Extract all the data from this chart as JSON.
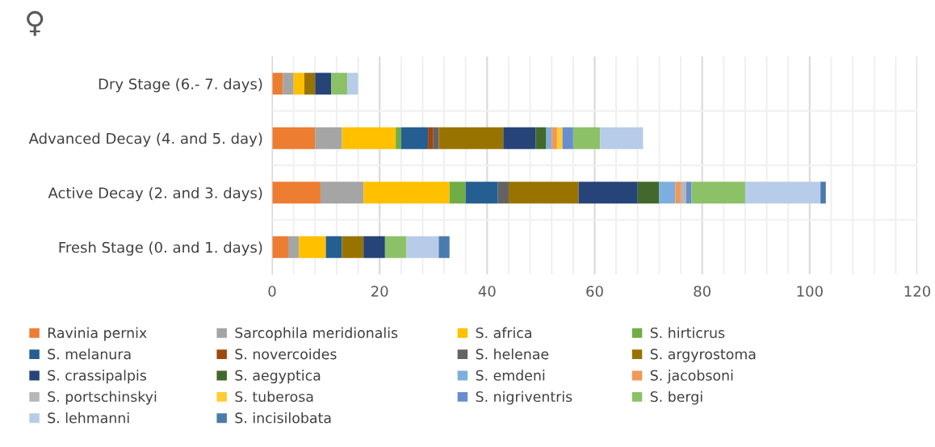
{
  "chart_data": {
    "type": "bar",
    "orientation": "horizontal",
    "stacked": true,
    "title": "♀",
    "categories": [
      "Dry Stage (6.- 7. days)",
      "Advanced Decay (4. and 5. day)",
      "Active Decay (2. and 3. days)",
      "Fresh Stage (0. and 1. days)"
    ],
    "series": [
      {
        "name": "Ravinia pernix",
        "color": "#ed7d31",
        "values": [
          2,
          8,
          9,
          3
        ]
      },
      {
        "name": "Sarcophila meridionalis",
        "color": "#a5a5a5",
        "values": [
          2,
          5,
          8,
          2
        ]
      },
      {
        "name": "S. africa",
        "color": "#ffc000",
        "values": [
          2,
          10,
          16,
          5
        ]
      },
      {
        "name": "S. hirticrus",
        "color": "#70ad47",
        "values": [
          0,
          1,
          3,
          0
        ]
      },
      {
        "name": "S. melanura",
        "color": "#255e91",
        "values": [
          0,
          5,
          6,
          3
        ]
      },
      {
        "name": "S. novercoides",
        "color": "#9e480e",
        "values": [
          0,
          1,
          0,
          0
        ]
      },
      {
        "name": "S. helenae",
        "color": "#636363",
        "values": [
          0,
          1,
          2,
          0
        ]
      },
      {
        "name": "S. argyrostoma",
        "color": "#997300",
        "values": [
          2,
          12,
          13,
          4
        ]
      },
      {
        "name": "S. crassipalpis",
        "color": "#264478",
        "values": [
          3,
          6,
          11,
          4
        ]
      },
      {
        "name": "S. aegyptica",
        "color": "#43682b",
        "values": [
          0,
          2,
          4,
          0
        ]
      },
      {
        "name": "S. emdeni",
        "color": "#7cafdd",
        "values": [
          0,
          1,
          3,
          0
        ]
      },
      {
        "name": "S. jacobsoni",
        "color": "#f1975a",
        "values": [
          0,
          1,
          1,
          0
        ]
      },
      {
        "name": "S. portschinskyi",
        "color": "#b7b7b7",
        "values": [
          0,
          0,
          1,
          0
        ]
      },
      {
        "name": "S. tuberosa",
        "color": "#ffcd33",
        "values": [
          0,
          1,
          0,
          0
        ]
      },
      {
        "name": "S. nigriventris",
        "color": "#698ed0",
        "values": [
          0,
          2,
          1,
          0
        ]
      },
      {
        "name": "S. bergi",
        "color": "#8cc168",
        "values": [
          3,
          5,
          10,
          4
        ]
      },
      {
        "name": "S. lehmanni",
        "color": "#b7cce8",
        "values": [
          2,
          8,
          14,
          6
        ]
      },
      {
        "name": "S. incisilobata",
        "color": "#4a7bac",
        "values": [
          0,
          0,
          1,
          2
        ]
      }
    ],
    "xlim": [
      0,
      120
    ],
    "xticks": [
      0,
      20,
      40,
      60,
      80,
      100,
      120
    ],
    "grid": true,
    "legend": "bottom"
  }
}
